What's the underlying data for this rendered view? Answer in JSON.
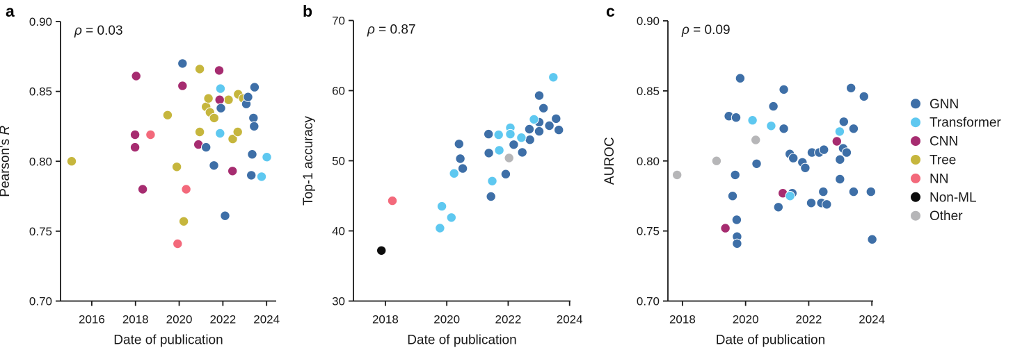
{
  "background": "#ffffff",
  "legend": {
    "items": [
      {
        "label": "GNN",
        "color": "#3e6fa7"
      },
      {
        "label": "Transformer",
        "color": "#5ec8f0"
      },
      {
        "label": "CNN",
        "color": "#a62c70"
      },
      {
        "label": "Tree",
        "color": "#c6b63d"
      },
      {
        "label": "NN",
        "color": "#f3697b"
      },
      {
        "label": "Non-ML",
        "color": "#0c0c0c"
      },
      {
        "label": "Other",
        "color": "#b6b6b8"
      }
    ]
  },
  "panels": [
    {
      "letter": "a",
      "rho_symbol": "ρ",
      "rho_rest": " = 0.03",
      "chart_data": {
        "type": "scatter",
        "title": "",
        "xlabel": "Date of publication",
        "ylabel_parts": [
          {
            "text": "Pearson's ",
            "italic": false
          },
          {
            "text": "R",
            "italic": true
          }
        ],
        "xlim": [
          2014.57,
          2024.44
        ],
        "ylim": [
          0.7,
          0.9
        ],
        "grid": false,
        "legend_position": "none",
        "xticks": [
          {
            "v": 2016,
            "l": "2016"
          },
          {
            "v": 2018,
            "l": "2018"
          },
          {
            "v": 2020,
            "l": "2020"
          },
          {
            "v": 2022,
            "l": "2022"
          },
          {
            "v": 2024,
            "l": "2024"
          }
        ],
        "yticks": [
          {
            "v": 0.7,
            "l": "0.70"
          },
          {
            "v": 0.75,
            "l": "0.75"
          },
          {
            "v": 0.8,
            "l": "0.80"
          },
          {
            "v": 0.85,
            "l": "0.85"
          },
          {
            "v": 0.9,
            "l": "0.90"
          }
        ],
        "points": [
          {
            "x": 2015.08,
            "y": 0.8,
            "c": "Tree"
          },
          {
            "x": 2019.47,
            "y": 0.833,
            "c": "Tree"
          },
          {
            "x": 2019.89,
            "y": 0.796,
            "c": "Tree"
          },
          {
            "x": 2020.21,
            "y": 0.757,
            "c": "Tree"
          },
          {
            "x": 2020.94,
            "y": 0.866,
            "c": "Tree"
          },
          {
            "x": 2020.94,
            "y": 0.821,
            "c": "Tree"
          },
          {
            "x": 2021.23,
            "y": 0.839,
            "c": "Tree"
          },
          {
            "x": 2021.34,
            "y": 0.845,
            "c": "Tree"
          },
          {
            "x": 2021.41,
            "y": 0.835,
            "c": "Tree"
          },
          {
            "x": 2021.6,
            "y": 0.831,
            "c": "Tree"
          },
          {
            "x": 2022.26,
            "y": 0.844,
            "c": "Tree"
          },
          {
            "x": 2022.45,
            "y": 0.816,
            "c": "Tree"
          },
          {
            "x": 2022.68,
            "y": 0.821,
            "c": "Tree"
          },
          {
            "x": 2022.7,
            "y": 0.848,
            "c": "Tree"
          },
          {
            "x": 2022.93,
            "y": 0.845,
            "c": "Tree"
          },
          {
            "x": 2017.98,
            "y": 0.819,
            "c": "CNN"
          },
          {
            "x": 2017.98,
            "y": 0.81,
            "c": "CNN"
          },
          {
            "x": 2018.03,
            "y": 0.861,
            "c": "CNN"
          },
          {
            "x": 2018.33,
            "y": 0.78,
            "c": "CNN"
          },
          {
            "x": 2020.15,
            "y": 0.854,
            "c": "CNN"
          },
          {
            "x": 2020.88,
            "y": 0.812,
            "c": "CNN"
          },
          {
            "x": 2021.83,
            "y": 0.865,
            "c": "CNN"
          },
          {
            "x": 2021.85,
            "y": 0.844,
            "c": "CNN"
          },
          {
            "x": 2022.44,
            "y": 0.793,
            "c": "CNN"
          },
          {
            "x": 2020.15,
            "y": 0.87,
            "c": "GNN"
          },
          {
            "x": 2021.23,
            "y": 0.81,
            "c": "GNN"
          },
          {
            "x": 2021.59,
            "y": 0.797,
            "c": "GNN"
          },
          {
            "x": 2021.91,
            "y": 0.838,
            "c": "GNN"
          },
          {
            "x": 2022.1,
            "y": 0.761,
            "c": "GNN"
          },
          {
            "x": 2023.07,
            "y": 0.841,
            "c": "GNN"
          },
          {
            "x": 2023.15,
            "y": 0.846,
            "c": "GNN"
          },
          {
            "x": 2023.3,
            "y": 0.79,
            "c": "GNN"
          },
          {
            "x": 2023.34,
            "y": 0.805,
            "c": "GNN"
          },
          {
            "x": 2023.4,
            "y": 0.831,
            "c": "GNN"
          },
          {
            "x": 2023.43,
            "y": 0.825,
            "c": "GNN"
          },
          {
            "x": 2023.45,
            "y": 0.853,
            "c": "GNN"
          },
          {
            "x": 2021.87,
            "y": 0.82,
            "c": "Transformer"
          },
          {
            "x": 2021.89,
            "y": 0.852,
            "c": "Transformer"
          },
          {
            "x": 2023.77,
            "y": 0.789,
            "c": "Transformer"
          },
          {
            "x": 2024.01,
            "y": 0.803,
            "c": "Transformer"
          },
          {
            "x": 2018.69,
            "y": 0.819,
            "c": "NN"
          },
          {
            "x": 2019.93,
            "y": 0.741,
            "c": "NN"
          },
          {
            "x": 2020.32,
            "y": 0.78,
            "c": "NN"
          }
        ]
      }
    },
    {
      "letter": "b",
      "rho_symbol": "ρ",
      "rho_rest": " = 0.87",
      "chart_data": {
        "type": "scatter",
        "title": "",
        "xlabel": "Date of publication",
        "ylabel_parts": [
          {
            "text": "Top-1 accuracy",
            "italic": false
          }
        ],
        "xlim": [
          2016.96,
          2024.03
        ],
        "ylim": [
          30,
          70
        ],
        "grid": false,
        "legend_position": "none",
        "xticks": [
          {
            "v": 2018,
            "l": "2018"
          },
          {
            "v": 2020,
            "l": "2020"
          },
          {
            "v": 2022,
            "l": "2022"
          },
          {
            "v": 2024,
            "l": "2024"
          }
        ],
        "yticks": [
          {
            "v": 30,
            "l": "30"
          },
          {
            "v": 40,
            "l": "40"
          },
          {
            "v": 50,
            "l": "50"
          },
          {
            "v": 60,
            "l": "60"
          },
          {
            "v": 70,
            "l": "70"
          }
        ],
        "points": [
          {
            "x": 2017.87,
            "y": 37.2,
            "c": "Non-ML"
          },
          {
            "x": 2018.23,
            "y": 44.3,
            "c": "NN"
          },
          {
            "x": 2020.4,
            "y": 52.4,
            "c": "GNN"
          },
          {
            "x": 2020.44,
            "y": 50.3,
            "c": "GNN"
          },
          {
            "x": 2020.52,
            "y": 48.9,
            "c": "GNN"
          },
          {
            "x": 2021.36,
            "y": 53.8,
            "c": "GNN"
          },
          {
            "x": 2021.37,
            "y": 51.1,
            "c": "GNN"
          },
          {
            "x": 2021.44,
            "y": 44.9,
            "c": "GNN"
          },
          {
            "x": 2021.92,
            "y": 48.1,
            "c": "GNN"
          },
          {
            "x": 2022.18,
            "y": 52.3,
            "c": "GNN"
          },
          {
            "x": 2022.46,
            "y": 51.2,
            "c": "GNN"
          },
          {
            "x": 2022.69,
            "y": 54.5,
            "c": "GNN"
          },
          {
            "x": 2022.71,
            "y": 53.0,
            "c": "GNN"
          },
          {
            "x": 2023.01,
            "y": 59.3,
            "c": "GNN"
          },
          {
            "x": 2023.01,
            "y": 55.5,
            "c": "GNN"
          },
          {
            "x": 2023.01,
            "y": 54.2,
            "c": "GNN"
          },
          {
            "x": 2023.15,
            "y": 57.5,
            "c": "GNN"
          },
          {
            "x": 2023.34,
            "y": 55.0,
            "c": "GNN"
          },
          {
            "x": 2023.56,
            "y": 56.0,
            "c": "GNN"
          },
          {
            "x": 2023.65,
            "y": 54.4,
            "c": "GNN"
          },
          {
            "x": 2022.03,
            "y": 50.4,
            "c": "Other"
          },
          {
            "x": 2019.78,
            "y": 40.4,
            "c": "Transformer"
          },
          {
            "x": 2019.84,
            "y": 43.5,
            "c": "Transformer"
          },
          {
            "x": 2020.15,
            "y": 41.9,
            "c": "Transformer"
          },
          {
            "x": 2020.24,
            "y": 48.2,
            "c": "Transformer"
          },
          {
            "x": 2021.48,
            "y": 47.1,
            "c": "Transformer"
          },
          {
            "x": 2021.69,
            "y": 53.7,
            "c": "Transformer"
          },
          {
            "x": 2021.71,
            "y": 51.5,
            "c": "Transformer"
          },
          {
            "x": 2022.07,
            "y": 54.7,
            "c": "Transformer"
          },
          {
            "x": 2022.07,
            "y": 53.8,
            "c": "Transformer"
          },
          {
            "x": 2022.43,
            "y": 53.3,
            "c": "Transformer"
          },
          {
            "x": 2022.84,
            "y": 55.9,
            "c": "Transformer"
          },
          {
            "x": 2023.47,
            "y": 61.9,
            "c": "Transformer"
          }
        ]
      }
    },
    {
      "letter": "c",
      "rho_symbol": "ρ",
      "rho_rest": " = 0.09",
      "chart_data": {
        "type": "scatter",
        "title": "",
        "xlabel": "Date of publication",
        "ylabel_parts": [
          {
            "text": "AUROC",
            "italic": false
          }
        ],
        "xlim": [
          2017.54,
          2024.04
        ],
        "ylim": [
          0.7,
          0.9
        ],
        "grid": false,
        "legend_position": "right",
        "xticks": [
          {
            "v": 2018,
            "l": "2018"
          },
          {
            "v": 2020,
            "l": "2020"
          },
          {
            "v": 2022,
            "l": "2022"
          },
          {
            "v": 2024,
            "l": "2024"
          }
        ],
        "yticks": [
          {
            "v": 0.7,
            "l": "0.70"
          },
          {
            "v": 0.75,
            "l": "0.75"
          },
          {
            "v": 0.8,
            "l": "0.80"
          },
          {
            "v": 0.85,
            "l": "0.85"
          },
          {
            "v": 0.9,
            "l": "0.90"
          }
        ],
        "points": [
          {
            "x": 2017.83,
            "y": 0.79,
            "c": "Other"
          },
          {
            "x": 2019.08,
            "y": 0.8,
            "c": "Other"
          },
          {
            "x": 2020.32,
            "y": 0.815,
            "c": "Other"
          },
          {
            "x": 2019.47,
            "y": 0.832,
            "c": "GNN"
          },
          {
            "x": 2019.59,
            "y": 0.775,
            "c": "GNN"
          },
          {
            "x": 2019.67,
            "y": 0.79,
            "c": "GNN"
          },
          {
            "x": 2019.7,
            "y": 0.831,
            "c": "GNN"
          },
          {
            "x": 2019.72,
            "y": 0.758,
            "c": "GNN"
          },
          {
            "x": 2019.73,
            "y": 0.746,
            "c": "GNN"
          },
          {
            "x": 2019.73,
            "y": 0.741,
            "c": "GNN"
          },
          {
            "x": 2019.83,
            "y": 0.859,
            "c": "GNN"
          },
          {
            "x": 2020.35,
            "y": 0.798,
            "c": "GNN"
          },
          {
            "x": 2020.88,
            "y": 0.839,
            "c": "GNN"
          },
          {
            "x": 2021.04,
            "y": 0.767,
            "c": "GNN"
          },
          {
            "x": 2021.21,
            "y": 0.851,
            "c": "GNN"
          },
          {
            "x": 2021.21,
            "y": 0.823,
            "c": "GNN"
          },
          {
            "x": 2021.4,
            "y": 0.805,
            "c": "GNN"
          },
          {
            "x": 2021.48,
            "y": 0.777,
            "c": "GNN"
          },
          {
            "x": 2021.51,
            "y": 0.802,
            "c": "GNN"
          },
          {
            "x": 2021.8,
            "y": 0.799,
            "c": "GNN"
          },
          {
            "x": 2021.89,
            "y": 0.795,
            "c": "GNN"
          },
          {
            "x": 2022.08,
            "y": 0.77,
            "c": "GNN"
          },
          {
            "x": 2022.1,
            "y": 0.806,
            "c": "GNN"
          },
          {
            "x": 2022.33,
            "y": 0.806,
            "c": "GNN"
          },
          {
            "x": 2022.4,
            "y": 0.77,
            "c": "GNN"
          },
          {
            "x": 2022.46,
            "y": 0.778,
            "c": "GNN"
          },
          {
            "x": 2022.48,
            "y": 0.808,
            "c": "GNN"
          },
          {
            "x": 2022.57,
            "y": 0.769,
            "c": "GNN"
          },
          {
            "x": 2022.99,
            "y": 0.801,
            "c": "GNN"
          },
          {
            "x": 2022.99,
            "y": 0.787,
            "c": "GNN"
          },
          {
            "x": 2023.09,
            "y": 0.809,
            "c": "GNN"
          },
          {
            "x": 2023.11,
            "y": 0.828,
            "c": "GNN"
          },
          {
            "x": 2023.2,
            "y": 0.806,
            "c": "GNN"
          },
          {
            "x": 2023.34,
            "y": 0.852,
            "c": "GNN"
          },
          {
            "x": 2023.42,
            "y": 0.823,
            "c": "GNN"
          },
          {
            "x": 2023.42,
            "y": 0.778,
            "c": "GNN"
          },
          {
            "x": 2023.75,
            "y": 0.846,
            "c": "GNN"
          },
          {
            "x": 2023.97,
            "y": 0.778,
            "c": "GNN"
          },
          {
            "x": 2024.01,
            "y": 0.744,
            "c": "GNN"
          },
          {
            "x": 2019.36,
            "y": 0.752,
            "c": "CNN"
          },
          {
            "x": 2021.18,
            "y": 0.777,
            "c": "CNN"
          },
          {
            "x": 2022.89,
            "y": 0.814,
            "c": "CNN"
          },
          {
            "x": 2020.22,
            "y": 0.829,
            "c": "Transformer"
          },
          {
            "x": 2020.81,
            "y": 0.825,
            "c": "Transformer"
          },
          {
            "x": 2021.41,
            "y": 0.775,
            "c": "Transformer"
          },
          {
            "x": 2022.98,
            "y": 0.821,
            "c": "Transformer"
          }
        ]
      }
    }
  ]
}
